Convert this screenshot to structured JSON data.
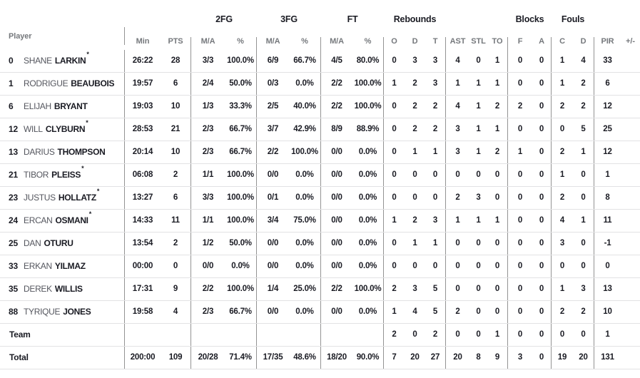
{
  "colors": {
    "background": "#ffffff",
    "text_dark": "#1a1b23",
    "text_gray": "#75787c",
    "first_name": "#54565e",
    "divider": "#939393",
    "row_line": "#e2e2e4"
  },
  "table": {
    "player_header": "Player",
    "starter_marker": "*",
    "group_headers": {
      "fg2": "2FG",
      "fg3": "3FG",
      "ft": "FT",
      "rebounds": "Rebounds",
      "blocks": "Blocks",
      "fouls": "Fouls"
    },
    "column_headers": {
      "min": "Min",
      "pts": "PTS",
      "ma": "M/A",
      "pct": "%",
      "reb_o": "O",
      "reb_d": "D",
      "reb_t": "T",
      "ast": "AST",
      "stl": "STL",
      "to": "TO",
      "blk_f": "F",
      "blk_a": "A",
      "foul_c": "C",
      "foul_d": "D",
      "pir": "PIR",
      "plus_minus": "+/-"
    },
    "rows": [
      {
        "num": "0",
        "first": "SHANE",
        "last": "LARKIN",
        "starter": true,
        "min": "26:22",
        "pts": "28",
        "fg2_ma": "3/3",
        "fg2_pct": "100.0%",
        "fg3_ma": "6/9",
        "fg3_pct": "66.7%",
        "ft_ma": "4/5",
        "ft_pct": "80.0%",
        "reb_o": "0",
        "reb_d": "3",
        "reb_t": "3",
        "ast": "4",
        "stl": "0",
        "to": "1",
        "blk_f": "0",
        "blk_a": "0",
        "foul_c": "1",
        "foul_d": "4",
        "pir": "33",
        "plus_minus": ""
      },
      {
        "num": "1",
        "first": "RODRIGUE",
        "last": "BEAUBOIS",
        "starter": false,
        "min": "19:57",
        "pts": "6",
        "fg2_ma": "2/4",
        "fg2_pct": "50.0%",
        "fg3_ma": "0/3",
        "fg3_pct": "0.0%",
        "ft_ma": "2/2",
        "ft_pct": "100.0%",
        "reb_o": "1",
        "reb_d": "2",
        "reb_t": "3",
        "ast": "1",
        "stl": "1",
        "to": "1",
        "blk_f": "0",
        "blk_a": "0",
        "foul_c": "1",
        "foul_d": "2",
        "pir": "6",
        "plus_minus": ""
      },
      {
        "num": "6",
        "first": "ELIJAH",
        "last": "BRYANT",
        "starter": false,
        "min": "19:03",
        "pts": "10",
        "fg2_ma": "1/3",
        "fg2_pct": "33.3%",
        "fg3_ma": "2/5",
        "fg3_pct": "40.0%",
        "ft_ma": "2/2",
        "ft_pct": "100.0%",
        "reb_o": "0",
        "reb_d": "2",
        "reb_t": "2",
        "ast": "4",
        "stl": "1",
        "to": "2",
        "blk_f": "2",
        "blk_a": "0",
        "foul_c": "2",
        "foul_d": "2",
        "pir": "12",
        "plus_minus": ""
      },
      {
        "num": "12",
        "first": "WILL",
        "last": "CLYBURN",
        "starter": true,
        "min": "28:53",
        "pts": "21",
        "fg2_ma": "2/3",
        "fg2_pct": "66.7%",
        "fg3_ma": "3/7",
        "fg3_pct": "42.9%",
        "ft_ma": "8/9",
        "ft_pct": "88.9%",
        "reb_o": "0",
        "reb_d": "2",
        "reb_t": "2",
        "ast": "3",
        "stl": "1",
        "to": "1",
        "blk_f": "0",
        "blk_a": "0",
        "foul_c": "0",
        "foul_d": "5",
        "pir": "25",
        "plus_minus": ""
      },
      {
        "num": "13",
        "first": "DARIUS",
        "last": "THOMPSON",
        "starter": false,
        "min": "20:14",
        "pts": "10",
        "fg2_ma": "2/3",
        "fg2_pct": "66.7%",
        "fg3_ma": "2/2",
        "fg3_pct": "100.0%",
        "ft_ma": "0/0",
        "ft_pct": "0.0%",
        "reb_o": "0",
        "reb_d": "1",
        "reb_t": "1",
        "ast": "3",
        "stl": "1",
        "to": "2",
        "blk_f": "1",
        "blk_a": "0",
        "foul_c": "2",
        "foul_d": "1",
        "pir": "12",
        "plus_minus": ""
      },
      {
        "num": "21",
        "first": "TIBOR",
        "last": "PLEISS",
        "starter": true,
        "min": "06:08",
        "pts": "2",
        "fg2_ma": "1/1",
        "fg2_pct": "100.0%",
        "fg3_ma": "0/0",
        "fg3_pct": "0.0%",
        "ft_ma": "0/0",
        "ft_pct": "0.0%",
        "reb_o": "0",
        "reb_d": "0",
        "reb_t": "0",
        "ast": "0",
        "stl": "0",
        "to": "0",
        "blk_f": "0",
        "blk_a": "0",
        "foul_c": "1",
        "foul_d": "0",
        "pir": "1",
        "plus_minus": ""
      },
      {
        "num": "23",
        "first": "JUSTUS",
        "last": "HOLLATZ",
        "starter": true,
        "min": "13:27",
        "pts": "6",
        "fg2_ma": "3/3",
        "fg2_pct": "100.0%",
        "fg3_ma": "0/1",
        "fg3_pct": "0.0%",
        "ft_ma": "0/0",
        "ft_pct": "0.0%",
        "reb_o": "0",
        "reb_d": "0",
        "reb_t": "0",
        "ast": "2",
        "stl": "3",
        "to": "0",
        "blk_f": "0",
        "blk_a": "0",
        "foul_c": "2",
        "foul_d": "0",
        "pir": "8",
        "plus_minus": ""
      },
      {
        "num": "24",
        "first": "ERCAN",
        "last": "OSMANI",
        "starter": true,
        "min": "14:33",
        "pts": "11",
        "fg2_ma": "1/1",
        "fg2_pct": "100.0%",
        "fg3_ma": "3/4",
        "fg3_pct": "75.0%",
        "ft_ma": "0/0",
        "ft_pct": "0.0%",
        "reb_o": "1",
        "reb_d": "2",
        "reb_t": "3",
        "ast": "1",
        "stl": "1",
        "to": "1",
        "blk_f": "0",
        "blk_a": "0",
        "foul_c": "4",
        "foul_d": "1",
        "pir": "11",
        "plus_minus": ""
      },
      {
        "num": "25",
        "first": "DAN",
        "last": "OTURU",
        "starter": false,
        "min": "13:54",
        "pts": "2",
        "fg2_ma": "1/2",
        "fg2_pct": "50.0%",
        "fg3_ma": "0/0",
        "fg3_pct": "0.0%",
        "ft_ma": "0/0",
        "ft_pct": "0.0%",
        "reb_o": "0",
        "reb_d": "1",
        "reb_t": "1",
        "ast": "0",
        "stl": "0",
        "to": "0",
        "blk_f": "0",
        "blk_a": "0",
        "foul_c": "3",
        "foul_d": "0",
        "pir": "-1",
        "plus_minus": ""
      },
      {
        "num": "33",
        "first": "ERKAN",
        "last": "YILMAZ",
        "starter": false,
        "min": "00:00",
        "pts": "0",
        "fg2_ma": "0/0",
        "fg2_pct": "0.0%",
        "fg3_ma": "0/0",
        "fg3_pct": "0.0%",
        "ft_ma": "0/0",
        "ft_pct": "0.0%",
        "reb_o": "0",
        "reb_d": "0",
        "reb_t": "0",
        "ast": "0",
        "stl": "0",
        "to": "0",
        "blk_f": "0",
        "blk_a": "0",
        "foul_c": "0",
        "foul_d": "0",
        "pir": "0",
        "plus_minus": ""
      },
      {
        "num": "35",
        "first": "DEREK",
        "last": "WILLIS",
        "starter": false,
        "min": "17:31",
        "pts": "9",
        "fg2_ma": "2/2",
        "fg2_pct": "100.0%",
        "fg3_ma": "1/4",
        "fg3_pct": "25.0%",
        "ft_ma": "2/2",
        "ft_pct": "100.0%",
        "reb_o": "2",
        "reb_d": "3",
        "reb_t": "5",
        "ast": "0",
        "stl": "0",
        "to": "0",
        "blk_f": "0",
        "blk_a": "0",
        "foul_c": "1",
        "foul_d": "3",
        "pir": "13",
        "plus_minus": ""
      },
      {
        "num": "88",
        "first": "TYRIQUE",
        "last": "JONES",
        "starter": false,
        "min": "19:58",
        "pts": "4",
        "fg2_ma": "2/3",
        "fg2_pct": "66.7%",
        "fg3_ma": "0/0",
        "fg3_pct": "0.0%",
        "ft_ma": "0/0",
        "ft_pct": "0.0%",
        "reb_o": "1",
        "reb_d": "4",
        "reb_t": "5",
        "ast": "2",
        "stl": "0",
        "to": "0",
        "blk_f": "0",
        "blk_a": "0",
        "foul_c": "2",
        "foul_d": "2",
        "pir": "10",
        "plus_minus": ""
      },
      {
        "label": "Team",
        "min": "",
        "pts": "",
        "fg2_ma": "",
        "fg2_pct": "",
        "fg3_ma": "",
        "fg3_pct": "",
        "ft_ma": "",
        "ft_pct": "",
        "reb_o": "2",
        "reb_d": "0",
        "reb_t": "2",
        "ast": "0",
        "stl": "0",
        "to": "1",
        "blk_f": "0",
        "blk_a": "0",
        "foul_c": "0",
        "foul_d": "0",
        "pir": "1",
        "plus_minus": ""
      },
      {
        "label": "Total",
        "min": "200:00",
        "pts": "109",
        "fg2_ma": "20/28",
        "fg2_pct": "71.4%",
        "fg3_ma": "17/35",
        "fg3_pct": "48.6%",
        "ft_ma": "18/20",
        "ft_pct": "90.0%",
        "reb_o": "7",
        "reb_d": "20",
        "reb_t": "27",
        "ast": "20",
        "stl": "8",
        "to": "9",
        "blk_f": "3",
        "blk_a": "0",
        "foul_c": "19",
        "foul_d": "20",
        "pir": "131",
        "plus_minus": ""
      }
    ]
  }
}
